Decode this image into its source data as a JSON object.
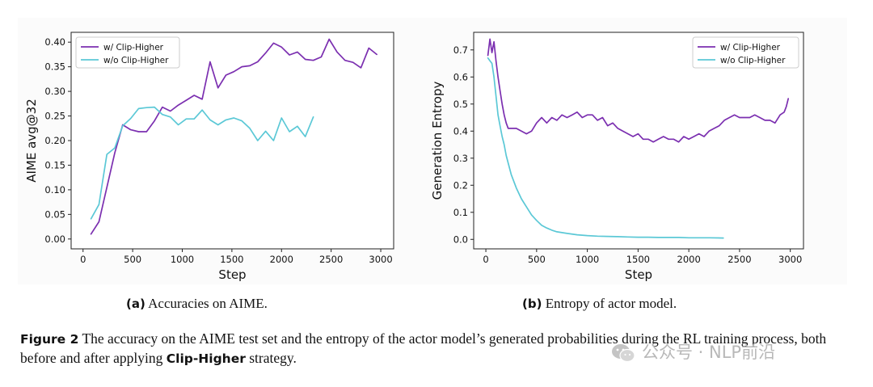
{
  "chart_data": [
    {
      "type": "line",
      "id": "a",
      "title": "",
      "xlabel": "Step",
      "ylabel": "AIME avg@32",
      "xlim": [
        -120,
        3130
      ],
      "ylim": [
        -0.02,
        0.42
      ],
      "xticks": [
        0,
        500,
        1000,
        1500,
        2000,
        2500,
        3000
      ],
      "xtick_labels": [
        "0",
        "500",
        "1000",
        "1500",
        "2000",
        "2500",
        "3000"
      ],
      "yticks": [
        0.0,
        0.05,
        0.1,
        0.15,
        0.2,
        0.25,
        0.3,
        0.35,
        0.4
      ],
      "ytick_labels": [
        "0.00",
        "0.05",
        "0.10",
        "0.15",
        "0.20",
        "0.25",
        "0.30",
        "0.35",
        "0.40"
      ],
      "legend_position": "top-left",
      "series": [
        {
          "name": "w/ Clip-Higher",
          "color": "#7b2fb0",
          "x": [
            80,
            160,
            240,
            320,
            400,
            480,
            560,
            640,
            720,
            800,
            880,
            960,
            1040,
            1120,
            1200,
            1280,
            1360,
            1440,
            1520,
            1600,
            1680,
            1760,
            1840,
            1920,
            2000,
            2080,
            2160,
            2240,
            2320,
            2400,
            2480,
            2560,
            2640,
            2720,
            2800,
            2880,
            2960
          ],
          "y": [
            0.01,
            0.035,
            0.105,
            0.175,
            0.232,
            0.222,
            0.218,
            0.218,
            0.24,
            0.268,
            0.26,
            0.272,
            0.282,
            0.292,
            0.284,
            0.36,
            0.307,
            0.333,
            0.34,
            0.35,
            0.352,
            0.36,
            0.378,
            0.398,
            0.39,
            0.374,
            0.38,
            0.365,
            0.363,
            0.37,
            0.406,
            0.38,
            0.363,
            0.359,
            0.348,
            0.388,
            0.375
          ]
        },
        {
          "name": "w/o Clip-Higher",
          "color": "#5bc8d6",
          "x": [
            80,
            160,
            240,
            320,
            400,
            480,
            560,
            640,
            720,
            800,
            880,
            960,
            1040,
            1120,
            1200,
            1280,
            1360,
            1440,
            1520,
            1600,
            1680,
            1760,
            1840,
            1920,
            2000,
            2080,
            2160,
            2240,
            2320
          ],
          "y": [
            0.041,
            0.07,
            0.172,
            0.185,
            0.23,
            0.245,
            0.265,
            0.267,
            0.268,
            0.253,
            0.248,
            0.232,
            0.244,
            0.244,
            0.262,
            0.242,
            0.232,
            0.242,
            0.246,
            0.24,
            0.225,
            0.2,
            0.219,
            0.2,
            0.246,
            0.218,
            0.229,
            0.208,
            0.248
          ]
        }
      ]
    },
    {
      "type": "line",
      "id": "b",
      "title": "",
      "xlabel": "Step",
      "ylabel": "Generation Entropy",
      "xlim": [
        -120,
        3130
      ],
      "ylim": [
        -0.035,
        0.765
      ],
      "xticks": [
        0,
        500,
        1000,
        1500,
        2000,
        2500,
        3000
      ],
      "xtick_labels": [
        "0",
        "500",
        "1000",
        "1500",
        "2000",
        "2500",
        "3000"
      ],
      "yticks": [
        0.0,
        0.1,
        0.2,
        0.3,
        0.4,
        0.5,
        0.6,
        0.7
      ],
      "ytick_labels": [
        "0.0",
        "0.1",
        "0.2",
        "0.3",
        "0.4",
        "0.5",
        "0.6",
        "0.7"
      ],
      "legend_position": "top-right",
      "series": [
        {
          "name": "w/ Clip-Higher",
          "color": "#7b2fb0",
          "x": [
            20,
            40,
            60,
            80,
            100,
            120,
            140,
            160,
            180,
            200,
            220,
            250,
            300,
            350,
            400,
            450,
            500,
            550,
            600,
            650,
            700,
            750,
            800,
            850,
            900,
            950,
            1000,
            1050,
            1100,
            1150,
            1200,
            1250,
            1300,
            1350,
            1400,
            1450,
            1500,
            1550,
            1600,
            1650,
            1700,
            1750,
            1800,
            1850,
            1900,
            1950,
            2000,
            2050,
            2100,
            2150,
            2200,
            2250,
            2300,
            2350,
            2400,
            2450,
            2500,
            2550,
            2600,
            2650,
            2700,
            2750,
            2800,
            2850,
            2900,
            2940,
            2960,
            2980
          ],
          "y": [
            0.68,
            0.74,
            0.69,
            0.73,
            0.66,
            0.6,
            0.55,
            0.5,
            0.46,
            0.43,
            0.41,
            0.41,
            0.41,
            0.4,
            0.39,
            0.4,
            0.43,
            0.45,
            0.43,
            0.45,
            0.44,
            0.46,
            0.45,
            0.46,
            0.47,
            0.45,
            0.46,
            0.46,
            0.44,
            0.45,
            0.42,
            0.43,
            0.41,
            0.4,
            0.39,
            0.38,
            0.39,
            0.37,
            0.37,
            0.36,
            0.37,
            0.38,
            0.37,
            0.37,
            0.36,
            0.38,
            0.37,
            0.38,
            0.39,
            0.38,
            0.4,
            0.41,
            0.42,
            0.44,
            0.45,
            0.46,
            0.45,
            0.45,
            0.45,
            0.46,
            0.45,
            0.44,
            0.44,
            0.43,
            0.46,
            0.47,
            0.49,
            0.52
          ]
        },
        {
          "name": "w/o Clip-Higher",
          "color": "#5bc8d6",
          "x": [
            20,
            40,
            60,
            80,
            100,
            120,
            140,
            160,
            180,
            200,
            250,
            300,
            350,
            400,
            450,
            500,
            550,
            600,
            650,
            700,
            800,
            900,
            1000,
            1100,
            1200,
            1300,
            1400,
            1500,
            1600,
            1700,
            1800,
            1900,
            2000,
            2100,
            2200,
            2340
          ],
          "y": [
            0.67,
            0.66,
            0.65,
            0.6,
            0.53,
            0.46,
            0.42,
            0.38,
            0.35,
            0.31,
            0.24,
            0.19,
            0.15,
            0.12,
            0.09,
            0.07,
            0.052,
            0.042,
            0.034,
            0.028,
            0.022,
            0.017,
            0.014,
            0.012,
            0.011,
            0.01,
            0.009,
            0.008,
            0.008,
            0.007,
            0.007,
            0.007,
            0.006,
            0.006,
            0.006,
            0.005
          ]
        }
      ]
    }
  ],
  "captions": {
    "sub_a": {
      "tag": "(a)",
      "text": "Accuracies on AIME."
    },
    "sub_b": {
      "tag": "(b)",
      "text": "Entropy of actor model."
    },
    "figure": {
      "label": "Figure 2",
      "text_before": "The accuracy on the AIME test set and the entropy of the actor model’s generated probabilities during the RL training process, both before and after applying",
      "keyword": "Clip-Higher",
      "text_after": "strategy."
    }
  },
  "watermark": {
    "text": "公众号 · NLP前沿"
  }
}
